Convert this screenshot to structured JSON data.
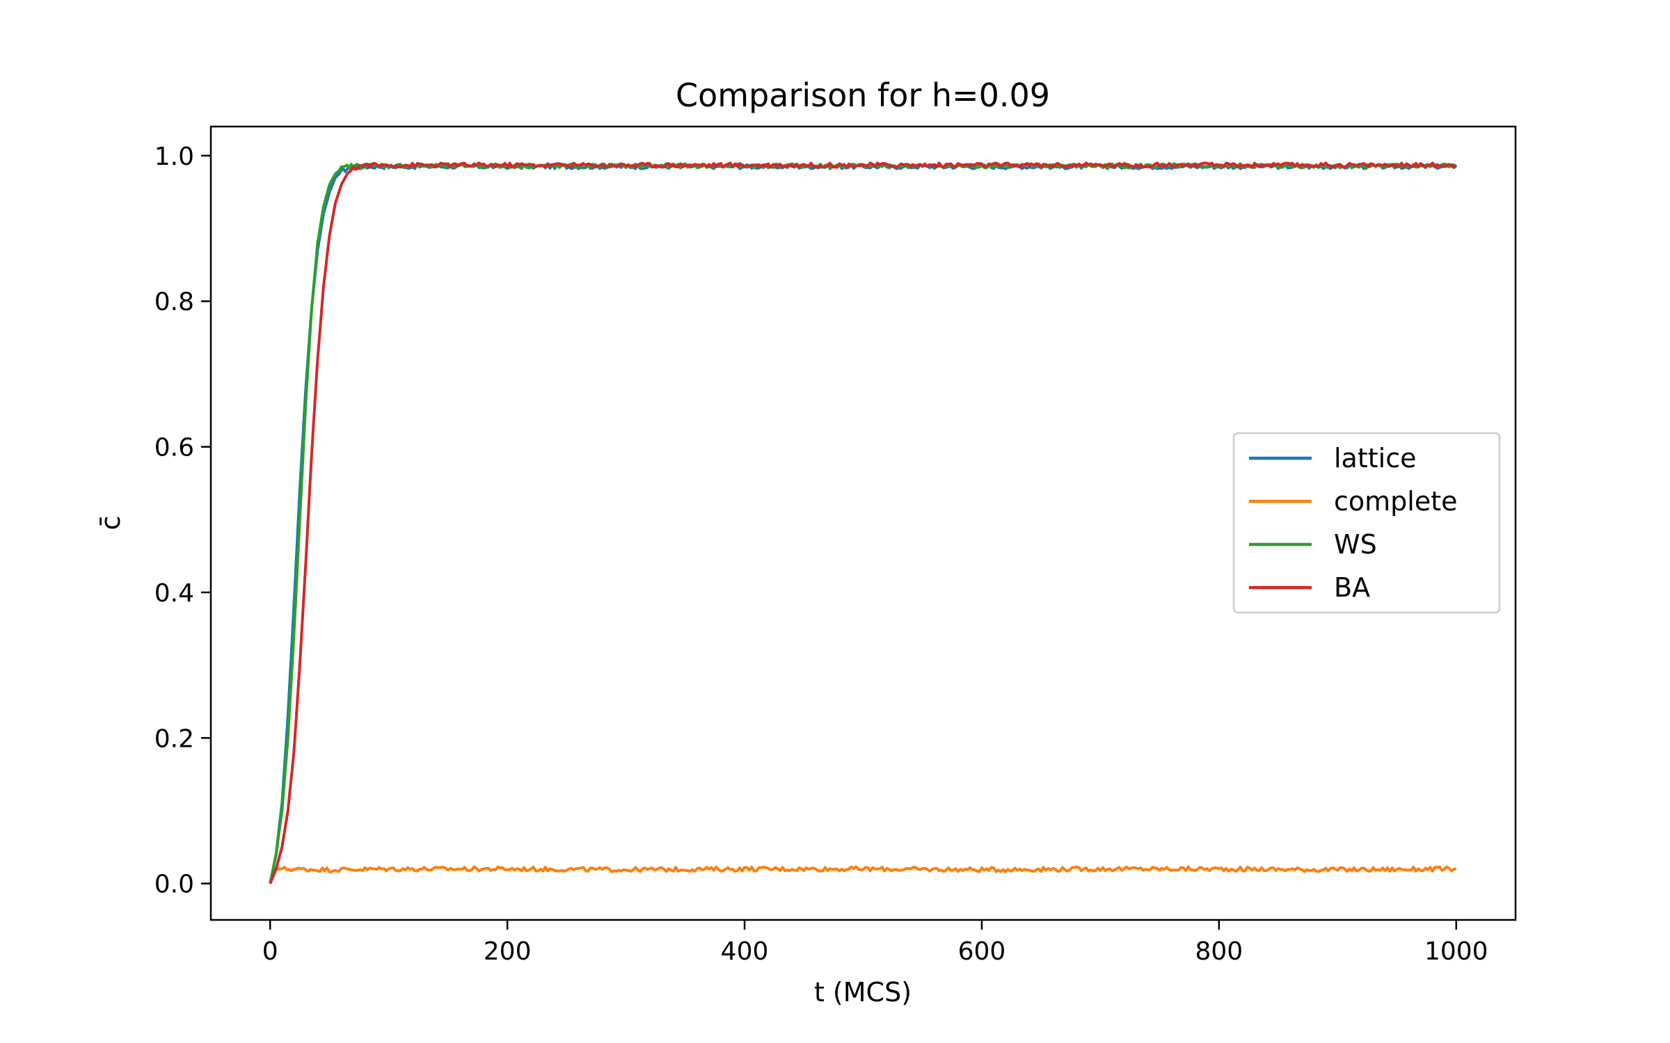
{
  "chart_data": {
    "type": "line",
    "title": "Comparison for h=0.09",
    "xlabel": "t (MCS)",
    "ylabel": "c̄",
    "xlim": [
      -50,
      1050
    ],
    "ylim": [
      -0.05,
      1.04
    ],
    "xticks": [
      0,
      200,
      400,
      600,
      800,
      1000
    ],
    "yticks": [
      0.0,
      0.2,
      0.4,
      0.6,
      0.8,
      1.0
    ],
    "xtick_labels": [
      "0",
      "200",
      "400",
      "600",
      "800",
      "1000"
    ],
    "ytick_labels": [
      "0.0",
      "0.2",
      "0.4",
      "0.6",
      "0.8",
      "1.0"
    ],
    "grid": false,
    "legend_position": "center-right",
    "series": [
      {
        "name": "lattice",
        "color": "#1f77b4",
        "x": [
          0,
          5,
          10,
          15,
          20,
          25,
          30,
          35,
          40,
          45,
          50,
          55,
          60,
          65,
          70,
          75,
          80,
          90,
          100,
          150,
          200,
          300,
          400,
          500,
          600,
          700,
          800,
          900,
          1000
        ],
        "y": [
          0.0,
          0.04,
          0.11,
          0.23,
          0.38,
          0.54,
          0.68,
          0.79,
          0.87,
          0.92,
          0.95,
          0.97,
          0.978,
          0.982,
          0.983,
          0.984,
          0.985,
          0.985,
          0.985,
          0.985,
          0.985,
          0.985,
          0.985,
          0.985,
          0.985,
          0.985,
          0.985,
          0.985,
          0.985
        ]
      },
      {
        "name": "complete",
        "color": "#ff7f0e",
        "x": [
          0,
          5,
          10,
          50,
          100,
          200,
          300,
          400,
          500,
          600,
          700,
          800,
          900,
          1000
        ],
        "y": [
          0.0,
          0.02,
          0.02,
          0.019,
          0.02,
          0.02,
          0.019,
          0.02,
          0.02,
          0.019,
          0.02,
          0.02,
          0.019,
          0.02
        ]
      },
      {
        "name": "WS",
        "color": "#2ca02c",
        "x": [
          0,
          5,
          10,
          15,
          20,
          25,
          30,
          35,
          40,
          45,
          50,
          55,
          60,
          65,
          70,
          75,
          80,
          90,
          100,
          150,
          200,
          300,
          400,
          500,
          600,
          700,
          800,
          900,
          1000
        ],
        "y": [
          0.0,
          0.04,
          0.1,
          0.2,
          0.34,
          0.5,
          0.66,
          0.79,
          0.88,
          0.93,
          0.96,
          0.975,
          0.982,
          0.985,
          0.986,
          0.986,
          0.986,
          0.986,
          0.986,
          0.986,
          0.986,
          0.986,
          0.986,
          0.986,
          0.986,
          0.986,
          0.986,
          0.986,
          0.986
        ]
      },
      {
        "name": "BA",
        "color": "#d62728",
        "x": [
          0,
          5,
          10,
          15,
          20,
          25,
          30,
          35,
          40,
          45,
          50,
          55,
          60,
          65,
          70,
          75,
          80,
          90,
          100,
          150,
          200,
          300,
          400,
          500,
          600,
          700,
          800,
          900,
          1000
        ],
        "y": [
          0.0,
          0.02,
          0.05,
          0.1,
          0.18,
          0.3,
          0.44,
          0.59,
          0.72,
          0.82,
          0.89,
          0.935,
          0.96,
          0.975,
          0.982,
          0.985,
          0.987,
          0.987,
          0.987,
          0.987,
          0.987,
          0.987,
          0.987,
          0.987,
          0.987,
          0.987,
          0.987,
          0.987,
          0.987
        ]
      }
    ]
  }
}
